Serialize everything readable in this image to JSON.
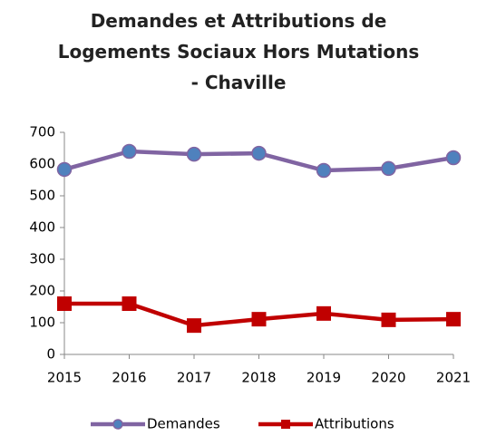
{
  "chart_data": {
    "type": "line",
    "title": "Demandes et Attributions de Logements Sociaux Hors Mutations - Chaville",
    "categories": [
      "2015",
      "2016",
      "2017",
      "2018",
      "2019",
      "2020",
      "2021"
    ],
    "series": [
      {
        "name": "Demandes",
        "color": "#8064a2",
        "marker_color": "#4f81bd",
        "marker": "circle",
        "values": [
          583,
          640,
          631,
          634,
          580,
          586,
          620
        ]
      },
      {
        "name": "Attributions",
        "color": "#c00000",
        "marker_color": "#c00000",
        "marker": "square",
        "values": [
          160,
          160,
          91,
          111,
          129,
          109,
          111
        ]
      }
    ],
    "ylim": [
      0,
      700
    ],
    "yticks": [
      0,
      100,
      200,
      300,
      400,
      500,
      600,
      700
    ],
    "grid": false,
    "legend": "bottom"
  }
}
